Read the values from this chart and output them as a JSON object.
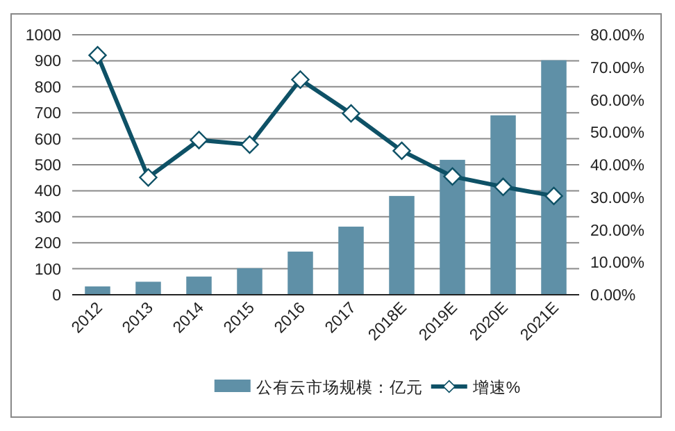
{
  "chart_data": {
    "type": "bar",
    "categories": [
      "2012",
      "2013",
      "2014",
      "2015",
      "2016",
      "2017",
      "2018E",
      "2019E",
      "2020E",
      "2021E"
    ],
    "series": [
      {
        "name": "公有云市场规模：亿元",
        "color": "#5f90a7",
        "values": [
          32,
          50,
          70,
          102,
          166,
          262,
          380,
          519,
          690,
          902
        ]
      },
      {
        "name": "增速%",
        "type": "line",
        "axis": "y2",
        "color": "#0e5166",
        "marker": "diamond",
        "values": [
          73.7,
          36.1,
          47.6,
          46.2,
          66.2,
          55.8,
          44.3,
          36.4,
          33.2,
          30.4
        ]
      }
    ],
    "ylim": [
      0,
      1000
    ],
    "yticks": [
      0,
      100,
      200,
      300,
      400,
      500,
      600,
      700,
      800,
      900,
      1000
    ],
    "y2lim": [
      0,
      80
    ],
    "y2ticks": [
      {
        "value": 0,
        "label": "0.00%"
      },
      {
        "value": 10,
        "label": "10.00%"
      },
      {
        "value": 20,
        "label": "20.00%"
      },
      {
        "value": 30,
        "label": "30.00%"
      },
      {
        "value": 40,
        "label": "40.00%"
      },
      {
        "value": 50,
        "label": "50.00%"
      },
      {
        "value": 60,
        "label": "60.00%"
      },
      {
        "value": 70,
        "label": "70.00%"
      },
      {
        "value": 80,
        "label": "80.00%"
      }
    ],
    "grid": "y",
    "legend": "bottom"
  }
}
